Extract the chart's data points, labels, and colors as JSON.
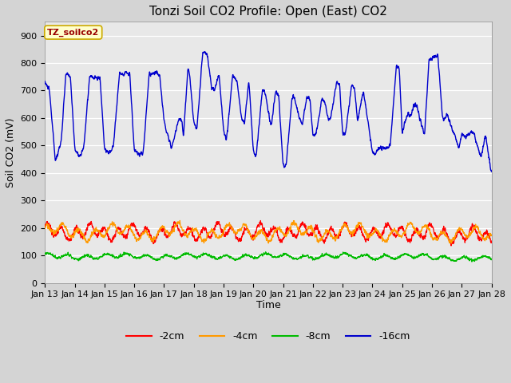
{
  "title": "Tonzi Soil CO2 Profile: Open (East) CO2",
  "ylabel": "Soil CO2 (mV)",
  "xlabel": "Time",
  "legend_label": "TZ_soilco2",
  "ylim": [
    0,
    950
  ],
  "yticks": [
    0,
    100,
    200,
    300,
    400,
    500,
    600,
    700,
    800,
    900
  ],
  "xtick_labels": [
    "Jan 13",
    "Jan 14",
    "Jan 15",
    "Jan 16",
    "Jan 17",
    "Jan 18",
    "Jan 19",
    "Jan 20",
    "Jan 21",
    "Jan 22",
    "Jan 23",
    "Jan 24",
    "Jan 25",
    "Jan 26",
    "Jan 27",
    "Jan 28"
  ],
  "colors": {
    "depth_2cm": "#ff0000",
    "depth_4cm": "#ff9900",
    "depth_8cm": "#00bb00",
    "depth_16cm": "#0000cc"
  },
  "legend_entries": [
    "-2cm",
    "-4cm",
    "-8cm",
    "-16cm"
  ],
  "fig_bg_color": "#d4d4d4",
  "plot_bg_color": "#e8e8e8",
  "title_fontsize": 11,
  "axis_label_fontsize": 9,
  "tick_fontsize": 8,
  "blue_keypoints": [
    [
      0.0,
      730
    ],
    [
      0.15,
      700
    ],
    [
      0.35,
      440
    ],
    [
      0.55,
      520
    ],
    [
      0.7,
      760
    ],
    [
      0.85,
      755
    ],
    [
      1.0,
      490
    ],
    [
      1.15,
      460
    ],
    [
      1.3,
      490
    ],
    [
      1.5,
      750
    ],
    [
      1.7,
      745
    ],
    [
      1.85,
      745
    ],
    [
      2.0,
      490
    ],
    [
      2.15,
      470
    ],
    [
      2.3,
      500
    ],
    [
      2.5,
      760
    ],
    [
      2.7,
      765
    ],
    [
      2.85,
      760
    ],
    [
      3.0,
      480
    ],
    [
      3.15,
      465
    ],
    [
      3.3,
      475
    ],
    [
      3.5,
      760
    ],
    [
      3.7,
      765
    ],
    [
      3.85,
      760
    ],
    [
      4.0,
      590
    ],
    [
      4.15,
      530
    ],
    [
      4.25,
      490
    ],
    [
      4.5,
      600
    ],
    [
      4.6,
      590
    ],
    [
      4.65,
      530
    ],
    [
      4.8,
      780
    ],
    [
      4.85,
      770
    ],
    [
      5.0,
      580
    ],
    [
      5.1,
      560
    ],
    [
      5.3,
      840
    ],
    [
      5.45,
      830
    ],
    [
      5.6,
      710
    ],
    [
      5.7,
      700
    ],
    [
      5.85,
      760
    ],
    [
      6.0,
      550
    ],
    [
      6.1,
      520
    ],
    [
      6.3,
      750
    ],
    [
      6.45,
      740
    ],
    [
      6.6,
      600
    ],
    [
      6.7,
      580
    ],
    [
      6.85,
      740
    ],
    [
      7.0,
      475
    ],
    [
      7.1,
      465
    ],
    [
      7.3,
      700
    ],
    [
      7.4,
      690
    ],
    [
      7.55,
      590
    ],
    [
      7.6,
      570
    ],
    [
      7.75,
      700
    ],
    [
      7.85,
      680
    ],
    [
      8.0,
      430
    ],
    [
      8.1,
      425
    ],
    [
      8.3,
      680
    ],
    [
      8.4,
      670
    ],
    [
      8.55,
      595
    ],
    [
      8.65,
      580
    ],
    [
      8.8,
      680
    ],
    [
      8.9,
      670
    ],
    [
      9.0,
      540
    ],
    [
      9.1,
      540
    ],
    [
      9.3,
      670
    ],
    [
      9.4,
      660
    ],
    [
      9.5,
      600
    ],
    [
      9.6,
      600
    ],
    [
      9.8,
      730
    ],
    [
      9.9,
      720
    ],
    [
      10.0,
      540
    ],
    [
      10.1,
      545
    ],
    [
      10.3,
      720
    ],
    [
      10.4,
      710
    ],
    [
      10.5,
      590
    ],
    [
      10.7,
      700
    ],
    [
      11.0,
      475
    ],
    [
      11.1,
      470
    ],
    [
      11.2,
      490
    ],
    [
      11.5,
      490
    ],
    [
      11.6,
      500
    ],
    [
      11.8,
      790
    ],
    [
      11.9,
      785
    ],
    [
      12.0,
      545
    ],
    [
      12.2,
      620
    ],
    [
      12.25,
      600
    ],
    [
      12.4,
      650
    ],
    [
      12.5,
      640
    ],
    [
      12.7,
      555
    ],
    [
      12.75,
      540
    ],
    [
      12.9,
      810
    ],
    [
      13.0,
      820
    ],
    [
      13.15,
      825
    ],
    [
      13.2,
      830
    ],
    [
      13.35,
      610
    ],
    [
      13.4,
      590
    ],
    [
      13.5,
      615
    ],
    [
      13.55,
      600
    ],
    [
      13.7,
      550
    ],
    [
      13.75,
      545
    ],
    [
      13.9,
      490
    ],
    [
      14.0,
      540
    ],
    [
      14.1,
      530
    ],
    [
      14.3,
      550
    ],
    [
      14.4,
      545
    ],
    [
      14.6,
      470
    ],
    [
      14.65,
      460
    ],
    [
      14.8,
      540
    ],
    [
      15.0,
      395
    ]
  ]
}
